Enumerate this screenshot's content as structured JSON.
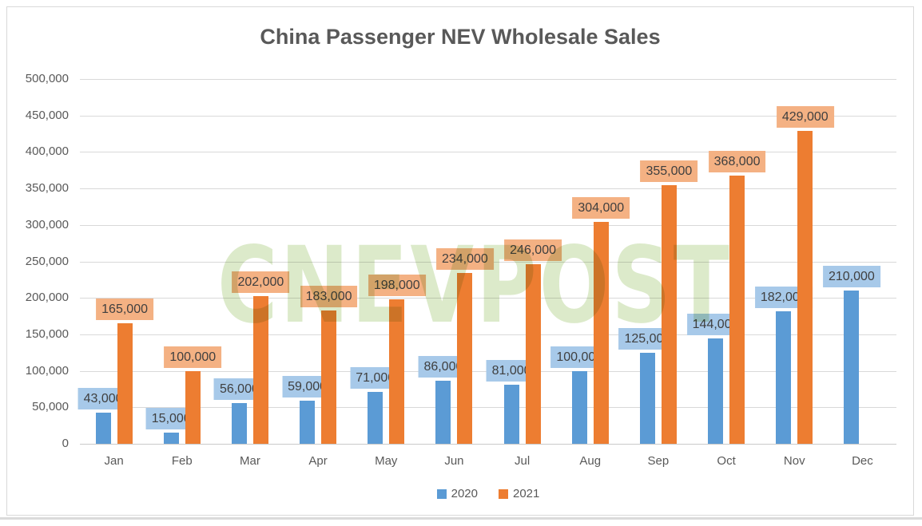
{
  "title": "China Passenger NEV Wholesale Sales",
  "watermark": "CNEVPOST",
  "colors": {
    "series_2020": "#5b9bd5",
    "series_2021": "#ed7d31",
    "label_bg_2020": "#a7c9e9",
    "label_bg_2021": "#f4b183",
    "gridline": "#d9d9d9",
    "axis_text": "#595959",
    "title_text": "#595959",
    "datalabel_text": "#3f3f3f",
    "watermark_green": "#dceaca",
    "frame_border": "#d9d9d9"
  },
  "chart_data": {
    "type": "bar",
    "title": "China Passenger NEV Wholesale Sales",
    "xlabel": "",
    "ylabel": "",
    "categories": [
      "Jan",
      "Feb",
      "Mar",
      "Apr",
      "May",
      "Jun",
      "Jul",
      "Aug",
      "Sep",
      "Oct",
      "Nov",
      "Dec"
    ],
    "series": [
      {
        "name": "2020",
        "color": "#5b9bd5",
        "label_bg": "#a7c9e9",
        "values": [
          43000,
          15000,
          56000,
          59000,
          71000,
          86000,
          81000,
          100000,
          125000,
          144000,
          182000,
          210000
        ],
        "data_labels": [
          "43,000",
          "15,000",
          "56,000",
          "59,000",
          "71,000",
          "86,000",
          "81,000",
          "100,000",
          "125,000",
          "144,000",
          "182,000",
          "210,000"
        ]
      },
      {
        "name": "2021",
        "color": "#ed7d31",
        "label_bg": "#f4b183",
        "values": [
          165000,
          100000,
          202000,
          183000,
          198000,
          234000,
          246000,
          304000,
          355000,
          368000,
          429000,
          null
        ],
        "data_labels": [
          "165,000",
          "100,000",
          "202,000",
          "183,000",
          "198,000",
          "234,000",
          "246,000",
          "304,000",
          "355,000",
          "368,000",
          "429,000",
          null
        ]
      }
    ],
    "ylim": [
      0,
      500000
    ],
    "ytick_step": 50000,
    "ytick_labels": [
      "0",
      "50,000",
      "100,000",
      "150,000",
      "200,000",
      "250,000",
      "300,000",
      "350,000",
      "400,000",
      "450,000",
      "500,000"
    ],
    "grid": true,
    "legend_position": "bottom",
    "data_labels_on": true
  }
}
